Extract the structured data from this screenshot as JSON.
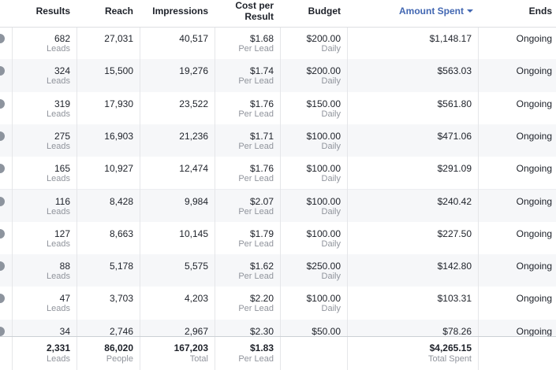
{
  "header": {
    "results": "Results",
    "reach": "Reach",
    "impressions": "Impressions",
    "cost": "Cost per Result",
    "budget": "Budget",
    "amount": "Amount Spent",
    "ends": "Ends"
  },
  "rows": [
    {
      "results": "682",
      "results_unit": "Leads",
      "reach": "27,031",
      "impressions": "40,517",
      "cost": "$1.68",
      "cost_unit": "Per Lead",
      "budget": "$200.00",
      "budget_unit": "Daily",
      "amount": "$1,148.17",
      "ends": "Ongoing"
    },
    {
      "results": "324",
      "results_unit": "Leads",
      "reach": "15,500",
      "impressions": "19,276",
      "cost": "$1.74",
      "cost_unit": "Per Lead",
      "budget": "$200.00",
      "budget_unit": "Daily",
      "amount": "$563.03",
      "ends": "Ongoing"
    },
    {
      "results": "319",
      "results_unit": "Leads",
      "reach": "17,930",
      "impressions": "23,522",
      "cost": "$1.76",
      "cost_unit": "Per Lead",
      "budget": "$150.00",
      "budget_unit": "Daily",
      "amount": "$561.80",
      "ends": "Ongoing"
    },
    {
      "results": "275",
      "results_unit": "Leads",
      "reach": "16,903",
      "impressions": "21,236",
      "cost": "$1.71",
      "cost_unit": "Per Lead",
      "budget": "$100.00",
      "budget_unit": "Daily",
      "amount": "$471.06",
      "ends": "Ongoing"
    },
    {
      "results": "165",
      "results_unit": "Leads",
      "reach": "10,927",
      "impressions": "12,474",
      "cost": "$1.76",
      "cost_unit": "Per Lead",
      "budget": "$100.00",
      "budget_unit": "Daily",
      "amount": "$291.09",
      "ends": "Ongoing"
    },
    {
      "results": "116",
      "results_unit": "Leads",
      "reach": "8,428",
      "impressions": "9,984",
      "cost": "$2.07",
      "cost_unit": "Per Lead",
      "budget": "$100.00",
      "budget_unit": "Daily",
      "amount": "$240.42",
      "ends": "Ongoing"
    },
    {
      "results": "127",
      "results_unit": "Leads",
      "reach": "8,663",
      "impressions": "10,145",
      "cost": "$1.79",
      "cost_unit": "Per Lead",
      "budget": "$100.00",
      "budget_unit": "Daily",
      "amount": "$227.50",
      "ends": "Ongoing"
    },
    {
      "results": "88",
      "results_unit": "Leads",
      "reach": "5,178",
      "impressions": "5,575",
      "cost": "$1.62",
      "cost_unit": "Per Lead",
      "budget": "$250.00",
      "budget_unit": "Daily",
      "amount": "$142.80",
      "ends": "Ongoing"
    },
    {
      "results": "47",
      "results_unit": "Leads",
      "reach": "3,703",
      "impressions": "4,203",
      "cost": "$2.20",
      "cost_unit": "Per Lead",
      "budget": "$100.00",
      "budget_unit": "Daily",
      "amount": "$103.31",
      "ends": "Ongoing"
    },
    {
      "results": "34",
      "reach": "2,746",
      "impressions": "2,967",
      "cost": "$2.30",
      "budget": "$50.00",
      "amount": "$78.26",
      "ends": "Ongoing"
    }
  ],
  "totals": {
    "results": "2,331",
    "results_unit": "Leads",
    "reach": "86,020",
    "reach_unit": "People",
    "impressions": "167,203",
    "impressions_unit": "Total",
    "cost": "$1.83",
    "cost_unit": "Per Lead",
    "amount": "$4,265.15",
    "amount_unit": "Total Spent"
  }
}
